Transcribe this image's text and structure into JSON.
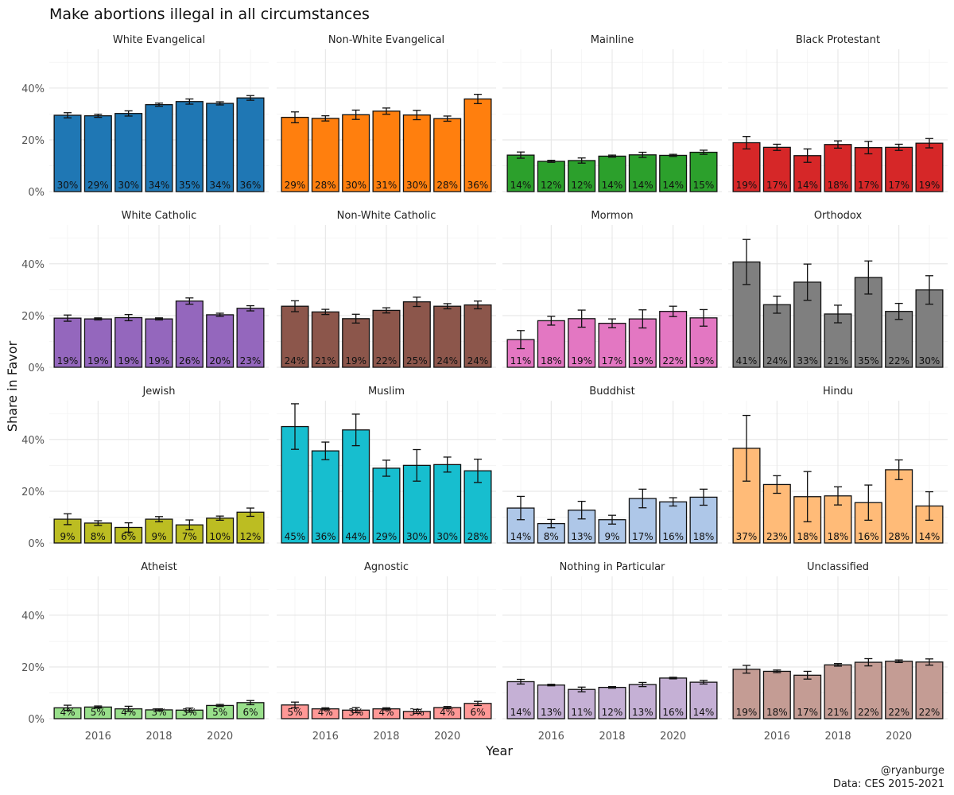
{
  "chart_data": {
    "type": "bar",
    "title": "Make abortions illegal in all circumstances",
    "xlabel": "Year",
    "ylabel": "Share in Favor",
    "caption_lines": [
      "@ryanburge",
      "Data: CES 2015-2021"
    ],
    "years": [
      2015,
      2016,
      2017,
      2018,
      2019,
      2020,
      2021
    ],
    "x_ticks": [
      "2016",
      "2018",
      "2020"
    ],
    "x_tick_values": [
      2016,
      2018,
      2020
    ],
    "y_ticks": [
      "0%",
      "20%",
      "40%"
    ],
    "y_tick_values": [
      0,
      0.2,
      0.4
    ],
    "ylim": [
      0,
      0.55
    ],
    "layout": "4x4 facet grid, shared axes",
    "panels": [
      {
        "name": "White Evangelical",
        "color": "#1f77b4",
        "values": [
          0.295,
          0.293,
          0.302,
          0.336,
          0.348,
          0.341,
          0.362
        ],
        "errors": [
          0.01,
          0.006,
          0.01,
          0.006,
          0.01,
          0.006,
          0.009
        ],
        "labels": [
          "30%",
          "29%",
          "30%",
          "34%",
          "35%",
          "34%",
          "36%"
        ]
      },
      {
        "name": "Non-White Evangelical",
        "color": "#ff7f0e",
        "values": [
          0.287,
          0.283,
          0.297,
          0.311,
          0.296,
          0.282,
          0.358
        ],
        "errors": [
          0.021,
          0.01,
          0.018,
          0.012,
          0.018,
          0.01,
          0.018
        ],
        "labels": [
          "29%",
          "28%",
          "30%",
          "31%",
          "30%",
          "28%",
          "36%"
        ]
      },
      {
        "name": "Mainline",
        "color": "#2ca02c",
        "values": [
          0.141,
          0.117,
          0.12,
          0.137,
          0.142,
          0.14,
          0.152
        ],
        "errors": [
          0.012,
          0.004,
          0.01,
          0.004,
          0.01,
          0.004,
          0.008
        ],
        "labels": [
          "14%",
          "12%",
          "12%",
          "14%",
          "14%",
          "14%",
          "15%"
        ]
      },
      {
        "name": "Black Protestant",
        "color": "#d62728",
        "values": [
          0.189,
          0.171,
          0.139,
          0.182,
          0.17,
          0.171,
          0.187
        ],
        "errors": [
          0.024,
          0.012,
          0.026,
          0.014,
          0.024,
          0.012,
          0.018
        ],
        "labels": [
          "19%",
          "17%",
          "14%",
          "18%",
          "17%",
          "17%",
          "19%"
        ]
      },
      {
        "name": "White Catholic",
        "color": "#9467bd",
        "values": [
          0.19,
          0.187,
          0.192,
          0.187,
          0.256,
          0.203,
          0.228
        ],
        "errors": [
          0.012,
          0.004,
          0.012,
          0.004,
          0.012,
          0.006,
          0.01
        ],
        "labels": [
          "19%",
          "19%",
          "19%",
          "19%",
          "26%",
          "20%",
          "23%"
        ]
      },
      {
        "name": "Non-White Catholic",
        "color": "#8c564b",
        "values": [
          0.236,
          0.214,
          0.188,
          0.22,
          0.253,
          0.236,
          0.241
        ],
        "errors": [
          0.021,
          0.01,
          0.017,
          0.01,
          0.018,
          0.01,
          0.015
        ],
        "labels": [
          "24%",
          "21%",
          "19%",
          "22%",
          "25%",
          "24%",
          "24%"
        ]
      },
      {
        "name": "Mormon",
        "color": "#e377c2",
        "values": [
          0.107,
          0.18,
          0.188,
          0.17,
          0.187,
          0.216,
          0.191
        ],
        "errors": [
          0.035,
          0.017,
          0.033,
          0.017,
          0.035,
          0.02,
          0.032
        ],
        "labels": [
          "11%",
          "18%",
          "19%",
          "17%",
          "19%",
          "22%",
          "19%"
        ]
      },
      {
        "name": "Orthodox",
        "color": "#7f7f7f",
        "values": [
          0.407,
          0.242,
          0.329,
          0.206,
          0.347,
          0.216,
          0.299
        ],
        "errors": [
          0.087,
          0.033,
          0.07,
          0.034,
          0.064,
          0.031,
          0.055
        ],
        "labels": [
          "41%",
          "24%",
          "33%",
          "21%",
          "35%",
          "22%",
          "30%"
        ]
      },
      {
        "name": "Jewish",
        "color": "#bcbd22",
        "values": [
          0.092,
          0.077,
          0.06,
          0.092,
          0.07,
          0.096,
          0.119
        ],
        "errors": [
          0.021,
          0.009,
          0.018,
          0.01,
          0.019,
          0.008,
          0.016
        ],
        "labels": [
          "9%",
          "8%",
          "6%",
          "9%",
          "7%",
          "10%",
          "12%"
        ]
      },
      {
        "name": "Muslim",
        "color": "#17becf",
        "values": [
          0.45,
          0.356,
          0.437,
          0.289,
          0.3,
          0.303,
          0.279
        ],
        "errors": [
          0.088,
          0.034,
          0.061,
          0.031,
          0.061,
          0.029,
          0.045
        ],
        "labels": [
          "45%",
          "36%",
          "44%",
          "29%",
          "30%",
          "30%",
          "28%"
        ]
      },
      {
        "name": "Buddhist",
        "color": "#aec7e8",
        "values": [
          0.135,
          0.075,
          0.127,
          0.09,
          0.172,
          0.159,
          0.177
        ],
        "errors": [
          0.045,
          0.016,
          0.034,
          0.017,
          0.036,
          0.016,
          0.031
        ],
        "labels": [
          "14%",
          "8%",
          "13%",
          "9%",
          "17%",
          "16%",
          "18%"
        ]
      },
      {
        "name": "Hindu",
        "color": "#ffbb78",
        "values": [
          0.366,
          0.226,
          0.179,
          0.182,
          0.156,
          0.283,
          0.143
        ],
        "errors": [
          0.127,
          0.034,
          0.097,
          0.035,
          0.068,
          0.038,
          0.055
        ],
        "labels": [
          "37%",
          "23%",
          "18%",
          "18%",
          "16%",
          "28%",
          "14%"
        ]
      },
      {
        "name": "Atheist",
        "color": "#98df8a",
        "values": [
          0.042,
          0.045,
          0.038,
          0.034,
          0.033,
          0.051,
          0.062
        ],
        "errors": [
          0.01,
          0.004,
          0.01,
          0.004,
          0.008,
          0.004,
          0.008
        ],
        "labels": [
          "4%",
          "5%",
          "4%",
          "3%",
          "3%",
          "5%",
          "6%"
        ]
      },
      {
        "name": "Agnostic",
        "color": "#ff9896",
        "values": [
          0.053,
          0.038,
          0.033,
          0.038,
          0.028,
          0.043,
          0.059
        ],
        "errors": [
          0.011,
          0.004,
          0.01,
          0.004,
          0.008,
          0.004,
          0.008
        ],
        "labels": [
          "5%",
          "4%",
          "3%",
          "4%",
          "3%",
          "4%",
          "6%"
        ]
      },
      {
        "name": "Nothing in Particular",
        "color": "#c5b0d5",
        "values": [
          0.143,
          0.13,
          0.113,
          0.121,
          0.132,
          0.157,
          0.141
        ],
        "errors": [
          0.009,
          0.003,
          0.009,
          0.003,
          0.008,
          0.003,
          0.007
        ],
        "labels": [
          "14%",
          "13%",
          "11%",
          "12%",
          "13%",
          "16%",
          "14%"
        ]
      },
      {
        "name": "Unclassified",
        "color": "#c49c94",
        "values": [
          0.191,
          0.183,
          0.168,
          0.208,
          0.218,
          0.222,
          0.219
        ],
        "errors": [
          0.015,
          0.005,
          0.015,
          0.005,
          0.014,
          0.005,
          0.012
        ],
        "labels": [
          "19%",
          "18%",
          "17%",
          "21%",
          "22%",
          "22%",
          "22%"
        ]
      }
    ]
  }
}
